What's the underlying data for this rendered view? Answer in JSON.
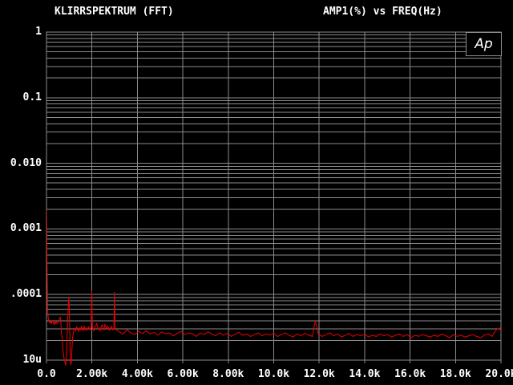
{
  "header": {
    "title_left": "KLIRRSPEKTRUM (FFT)",
    "title_right": "AMP1(%) vs FREQ(Hz)"
  },
  "logo": {
    "text": "Ap"
  },
  "colors": {
    "background": "#000000",
    "grid": "#8c8c8c",
    "trace": "#ee0000",
    "text": "#ffffff"
  },
  "chart_data": {
    "type": "line",
    "title": "KLIRRSPEKTRUM (FFT)",
    "ylabel": "AMP1(%)",
    "xlabel": "FREQ(Hz)",
    "grid": "on",
    "x_axis": {
      "scale": "linear",
      "min": 0,
      "max": 20000,
      "tick_step": 2000,
      "tick_labels": [
        "0.0",
        "2.00k",
        "4.00k",
        "6.00k",
        "8.00k",
        "10.0k",
        "12.0k",
        "14.0k",
        "16.0k",
        "18.0k",
        "20.0k"
      ]
    },
    "y_axis": {
      "scale": "log",
      "min": 1e-05,
      "max": 1,
      "tick_labels": [
        "1",
        "0.1",
        "0.010",
        "0.001",
        ".0001",
        "10u"
      ],
      "minor_multipliers": [
        0.9,
        0.8,
        0.7,
        0.6,
        0.5,
        0.4,
        0.3,
        0.2
      ]
    },
    "series": [
      {
        "name": "AMP1",
        "points": [
          [
            0,
            0.002
          ],
          [
            8,
            0.00135
          ],
          [
            15,
            0.0007
          ],
          [
            22,
            0.00035
          ],
          [
            30,
            0.00018
          ],
          [
            38,
            0.000105
          ],
          [
            48,
            7e-05
          ],
          [
            60,
            5.2e-05
          ],
          [
            80,
            4.3e-05
          ],
          [
            100,
            4e-05
          ],
          [
            125,
            3.8e-05
          ],
          [
            150,
            3.7e-05
          ],
          [
            180,
            3.9e-05
          ],
          [
            210,
            3.6e-05
          ],
          [
            240,
            3.8e-05
          ],
          [
            270,
            4e-05
          ],
          [
            300,
            3.7e-05
          ],
          [
            330,
            3.5e-05
          ],
          [
            360,
            3.8e-05
          ],
          [
            390,
            3.6e-05
          ],
          [
            420,
            3.9e-05
          ],
          [
            450,
            3.7e-05
          ],
          [
            480,
            3.6e-05
          ],
          [
            510,
            3.8e-05
          ],
          [
            540,
            4e-05
          ],
          [
            570,
            4.3e-05
          ],
          [
            600,
            4.5e-05
          ],
          [
            620,
            4.2e-05
          ],
          [
            650,
            2.9e-05
          ],
          [
            690,
            2e-05
          ],
          [
            730,
            1.4e-05
          ],
          [
            770,
            1.08e-05
          ],
          [
            800,
            9.6e-06
          ],
          [
            830,
            8.7e-06
          ],
          [
            848,
            8.4e-06
          ],
          [
            865,
            9.2e-06
          ],
          [
            885,
            1.4e-05
          ],
          [
            912,
            2.6e-05
          ],
          [
            940,
            4.6e-05
          ],
          [
            965,
            7.2e-05
          ],
          [
            985,
            8.8e-05
          ],
          [
            1000,
            7.4e-05
          ],
          [
            1018,
            3.2e-05
          ],
          [
            1038,
            1.5e-05
          ],
          [
            1058,
            9.2e-06
          ],
          [
            1076,
            8.4e-06
          ],
          [
            1096,
            9.8e-06
          ],
          [
            1120,
            1.5e-05
          ],
          [
            1150,
            2.2e-05
          ],
          [
            1180,
            2.6e-05
          ],
          [
            1212,
            2.9e-05
          ],
          [
            1250,
            3.05e-05
          ],
          [
            1290,
            2.8e-05
          ],
          [
            1330,
            3.2e-05
          ],
          [
            1372,
            3e-05
          ],
          [
            1412,
            2.75e-05
          ],
          [
            1452,
            3.1e-05
          ],
          [
            1492,
            2.9e-05
          ],
          [
            1532,
            3.25e-05
          ],
          [
            1572,
            3e-05
          ],
          [
            1612,
            2.8e-05
          ],
          [
            1652,
            3.3e-05
          ],
          [
            1692,
            3.05e-05
          ],
          [
            1732,
            2.85e-05
          ],
          [
            1772,
            3.1e-05
          ],
          [
            1812,
            2.9e-05
          ],
          [
            1852,
            3.2e-05
          ],
          [
            1892,
            3e-05
          ],
          [
            1932,
            2.9e-05
          ],
          [
            1966,
            3.1e-05
          ],
          [
            1992,
            0.000115
          ],
          [
            2016,
            3.2e-05
          ],
          [
            2050,
            3e-05
          ],
          [
            2090,
            2.8e-05
          ],
          [
            2130,
            3.2e-05
          ],
          [
            2172,
            3.4e-05
          ],
          [
            2212,
            3.6e-05
          ],
          [
            2252,
            3.2e-05
          ],
          [
            2292,
            2.9e-05
          ],
          [
            2332,
            3.1e-05
          ],
          [
            2372,
            2.8e-05
          ],
          [
            2412,
            3.3e-05
          ],
          [
            2452,
            3.45e-05
          ],
          [
            2492,
            3.1e-05
          ],
          [
            2532,
            2.9e-05
          ],
          [
            2572,
            3.5e-05
          ],
          [
            2612,
            3.2e-05
          ],
          [
            2652,
            3e-05
          ],
          [
            2692,
            3.3e-05
          ],
          [
            2732,
            3.1e-05
          ],
          [
            2772,
            2.85e-05
          ],
          [
            2812,
            3.1e-05
          ],
          [
            2852,
            3.3e-05
          ],
          [
            2892,
            3e-05
          ],
          [
            2932,
            2.9e-05
          ],
          [
            2966,
            3.2e-05
          ],
          [
            2992,
            0.00011
          ],
          [
            3016,
            3e-05
          ],
          [
            3200,
            2.7e-05
          ],
          [
            3370,
            2.5e-05
          ],
          [
            3540,
            2.9e-05
          ],
          [
            3710,
            2.6e-05
          ],
          [
            3880,
            2.45e-05
          ],
          [
            4050,
            2.75e-05
          ],
          [
            4220,
            2.55e-05
          ],
          [
            4390,
            2.8e-05
          ],
          [
            4560,
            2.5e-05
          ],
          [
            4730,
            2.65e-05
          ],
          [
            4900,
            2.4e-05
          ],
          [
            5070,
            2.7e-05
          ],
          [
            5240,
            2.5e-05
          ],
          [
            5410,
            2.6e-05
          ],
          [
            5580,
            2.35e-05
          ],
          [
            5750,
            2.55e-05
          ],
          [
            5920,
            2.75e-05
          ],
          [
            6090,
            2.45e-05
          ],
          [
            6260,
            2.6e-05
          ],
          [
            6430,
            2.5e-05
          ],
          [
            6600,
            2.3e-05
          ],
          [
            6770,
            2.6e-05
          ],
          [
            6940,
            2.45e-05
          ],
          [
            7110,
            2.7e-05
          ],
          [
            7280,
            2.5e-05
          ],
          [
            7450,
            2.35e-05
          ],
          [
            7620,
            2.6e-05
          ],
          [
            7790,
            2.4e-05
          ],
          [
            7960,
            2.55e-05
          ],
          [
            8130,
            2.3e-05
          ],
          [
            8300,
            2.5e-05
          ],
          [
            8470,
            2.65e-05
          ],
          [
            8640,
            2.4e-05
          ],
          [
            8810,
            2.5e-05
          ],
          [
            8980,
            2.3e-05
          ],
          [
            9150,
            2.45e-05
          ],
          [
            9320,
            2.6e-05
          ],
          [
            9490,
            2.35e-05
          ],
          [
            9660,
            2.5e-05
          ],
          [
            9830,
            2.4e-05
          ],
          [
            10000,
            2.55e-05
          ],
          [
            10170,
            2.3e-05
          ],
          [
            10340,
            2.45e-05
          ],
          [
            10510,
            2.6e-05
          ],
          [
            10680,
            2.4e-05
          ],
          [
            10850,
            2.25e-05
          ],
          [
            11020,
            2.5e-05
          ],
          [
            11190,
            2.35e-05
          ],
          [
            11360,
            2.55e-05
          ],
          [
            11530,
            2.4e-05
          ],
          [
            11700,
            2.3e-05
          ],
          [
            11830,
            4e-05
          ],
          [
            11960,
            2.5e-05
          ],
          [
            12130,
            2.3e-05
          ],
          [
            12300,
            2.45e-05
          ],
          [
            12470,
            2.6e-05
          ],
          [
            12640,
            2.35e-05
          ],
          [
            12810,
            2.5e-05
          ],
          [
            12980,
            2.25e-05
          ],
          [
            13150,
            2.4e-05
          ],
          [
            13320,
            2.55e-05
          ],
          [
            13490,
            2.3e-05
          ],
          [
            13660,
            2.45e-05
          ],
          [
            13830,
            2.35e-05
          ],
          [
            14000,
            2.5e-05
          ],
          [
            14170,
            2.25e-05
          ],
          [
            14340,
            2.4e-05
          ],
          [
            14510,
            2.3e-05
          ],
          [
            14680,
            2.5e-05
          ],
          [
            14850,
            2.35e-05
          ],
          [
            15020,
            2.45e-05
          ],
          [
            15190,
            2.25e-05
          ],
          [
            15360,
            2.4e-05
          ],
          [
            15530,
            2.5e-05
          ],
          [
            15700,
            2.3e-05
          ],
          [
            15870,
            2.45e-05
          ],
          [
            16040,
            2.2e-05
          ],
          [
            16210,
            2.4e-05
          ],
          [
            16380,
            2.3e-05
          ],
          [
            16550,
            2.45e-05
          ],
          [
            16720,
            2.35e-05
          ],
          [
            16890,
            2.25e-05
          ],
          [
            17060,
            2.4e-05
          ],
          [
            17230,
            2.3e-05
          ],
          [
            17400,
            2.5e-05
          ],
          [
            17570,
            2.35e-05
          ],
          [
            17740,
            2.2e-05
          ],
          [
            17910,
            2.45e-05
          ],
          [
            18080,
            2.3e-05
          ],
          [
            18250,
            2.4e-05
          ],
          [
            18420,
            2.25e-05
          ],
          [
            18590,
            2.35e-05
          ],
          [
            18760,
            2.45e-05
          ],
          [
            18930,
            2.3e-05
          ],
          [
            19100,
            2.2e-05
          ],
          [
            19270,
            2.4e-05
          ],
          [
            19440,
            2.5e-05
          ],
          [
            19610,
            2.3e-05
          ],
          [
            19780,
            2.9e-05
          ],
          [
            19950,
            3.1e-05
          ],
          [
            20000,
            2.7e-05
          ]
        ]
      }
    ]
  }
}
